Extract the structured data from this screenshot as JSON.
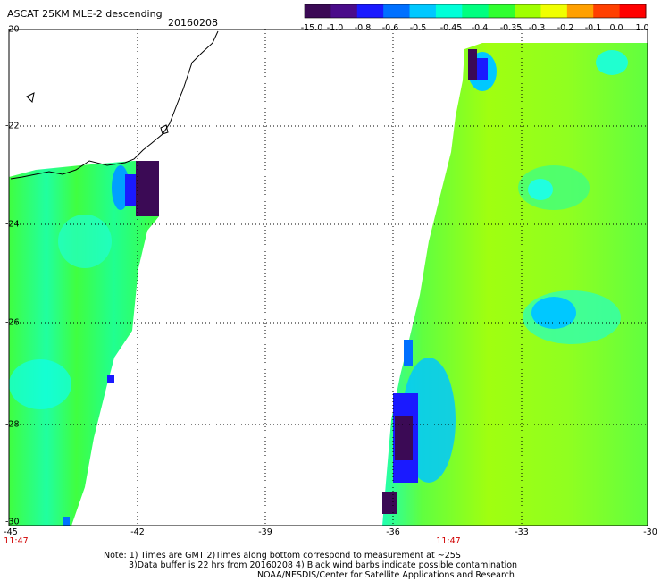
{
  "header": {
    "title": "ASCAT 25KM MLE-2 descending",
    "date": "20160208"
  },
  "colorbar": {
    "labels": [
      "-15.0",
      "-1.0",
      "-0.8",
      "-0.6",
      "-0.5",
      "-0.45",
      "-0.4",
      "-0.35",
      "-0.3",
      "-0.2",
      "-0.1",
      "0.0",
      "1.0"
    ],
    "colors": [
      "#3b0a55",
      "#4a0c8a",
      "#1a1aff",
      "#0070ff",
      "#00c8ff",
      "#00ffd8",
      "#00ff80",
      "#30ff30",
      "#a0ff00",
      "#f0ff00",
      "#ffa000",
      "#ff4000",
      "#ff0000"
    ]
  },
  "map": {
    "lat_labels": [
      "-20",
      "-22",
      "-24",
      "-26",
      "-28",
      "-30"
    ],
    "lon_labels": [
      "-45",
      "-42",
      "-39",
      "-36",
      "-33",
      "-30"
    ],
    "lat_range": [
      -30,
      -20
    ],
    "lon_range": [
      -45,
      -30
    ],
    "swath_times": [
      "11:47",
      "11:47"
    ],
    "swath_time_lons": [
      -45,
      -36
    ]
  },
  "notes": {
    "line1": "Note: 1) Times are GMT 2)Times along bottom correspond to measurement at ~25S",
    "line2": "3)Data buffer is 22 hrs from 20160208 4) Black wind barbs indicate possible contamination",
    "line3": "NOAA/NESDIS/Center for Satellite Applications and Research"
  }
}
